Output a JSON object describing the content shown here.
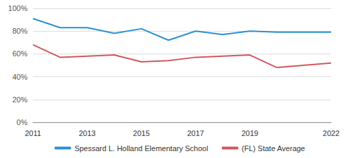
{
  "chart_data": {
    "type": "line",
    "categories": [
      "2011",
      null,
      "2013",
      null,
      "2015",
      null,
      "2017",
      null,
      "2019",
      null,
      null,
      "2022"
    ],
    "series": [
      {
        "name": "Spessard L. Holland Elementary School",
        "color": "#2a8fd1",
        "values": [
          91,
          83,
          83,
          78,
          82,
          72,
          80,
          77,
          80,
          79,
          79,
          79
        ]
      },
      {
        "name": "(FL) State Average",
        "color": "#d2555c",
        "values": [
          68,
          57,
          58,
          59,
          53,
          54,
          57,
          58,
          59,
          48,
          50,
          52
        ]
      }
    ],
    "ylim": [
      0,
      100
    ],
    "yticks": [
      {
        "value": 0,
        "label": "0%"
      },
      {
        "value": 20,
        "label": "20%"
      },
      {
        "value": 40,
        "label": "40%"
      },
      {
        "value": 60,
        "label": "60%"
      },
      {
        "value": 80,
        "label": "80%"
      },
      {
        "value": 100,
        "label": "100%"
      }
    ],
    "grid": true,
    "legend": "bottom"
  }
}
